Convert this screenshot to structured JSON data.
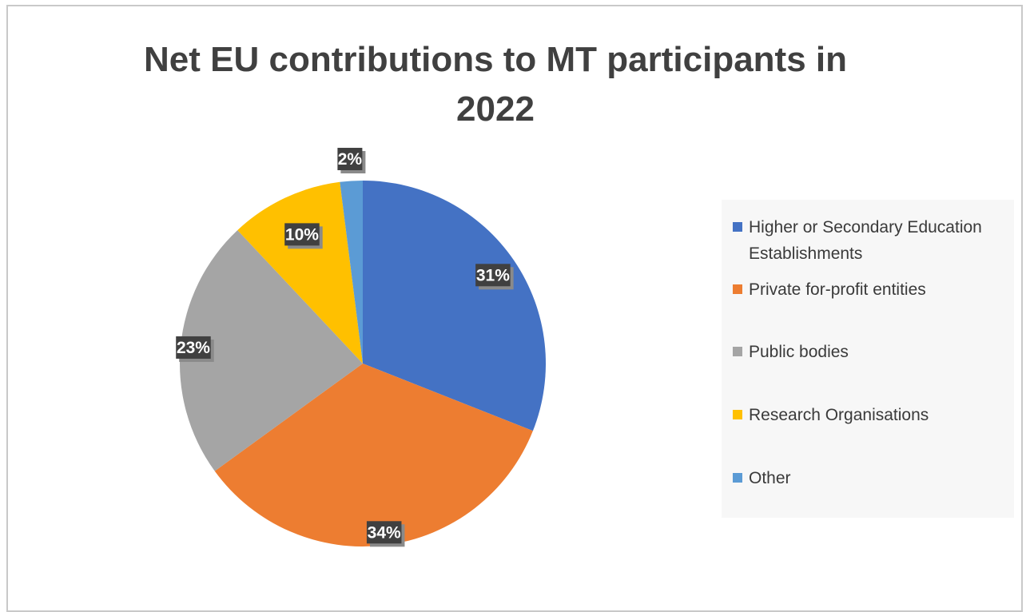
{
  "chart_data": {
    "type": "pie",
    "title": "Net EU contributions to MT participants in 2022",
    "legend_position": "right",
    "slices": [
      {
        "label": "Higher or Secondary Education Establishments",
        "value": 31,
        "display": "31%",
        "color": "#4472C4"
      },
      {
        "label": "Private for-profit entities",
        "value": 34,
        "display": "34%",
        "color": "#ED7D31"
      },
      {
        "label": "Public bodies",
        "value": 23,
        "display": "23%",
        "color": "#A5A5A5"
      },
      {
        "label": "Research Organisations",
        "value": 10,
        "display": "10%",
        "color": "#FFC000"
      },
      {
        "label": "Other",
        "value": 2,
        "display": "2%",
        "color": "#5B9BD5"
      }
    ]
  }
}
